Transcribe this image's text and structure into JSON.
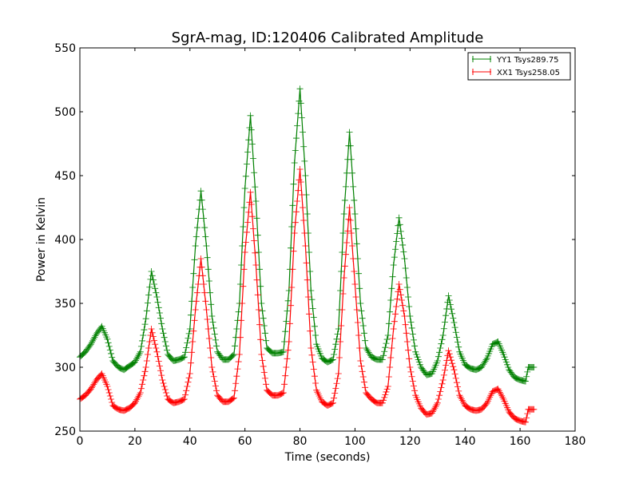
{
  "chart_data": {
    "type": "line",
    "title": "SgrA-mag, ID:120406 Calibrated Amplitude",
    "xlabel": "Time (seconds)",
    "ylabel": "Power in Kelvin",
    "xlim": [
      0,
      180
    ],
    "ylim": [
      250,
      550
    ],
    "xticks": [
      0,
      20,
      40,
      60,
      80,
      100,
      120,
      140,
      160,
      180
    ],
    "yticks": [
      250,
      300,
      350,
      400,
      450,
      500,
      550
    ],
    "grid": false,
    "legend_position": "top-right",
    "marker": "+",
    "series": [
      {
        "name": "YY1 Tsys289.75",
        "color": "#008000",
        "keypoints": [
          [
            0,
            308
          ],
          [
            2,
            312
          ],
          [
            4,
            318
          ],
          [
            6,
            326
          ],
          [
            8,
            332
          ],
          [
            10,
            322
          ],
          [
            12,
            305
          ],
          [
            14,
            300
          ],
          [
            16,
            298
          ],
          [
            18,
            301
          ],
          [
            20,
            304
          ],
          [
            22,
            312
          ],
          [
            24,
            338
          ],
          [
            26,
            375
          ],
          [
            28,
            355
          ],
          [
            30,
            330
          ],
          [
            32,
            310
          ],
          [
            34,
            305
          ],
          [
            36,
            306
          ],
          [
            38,
            308
          ],
          [
            40,
            330
          ],
          [
            42,
            395
          ],
          [
            44,
            438
          ],
          [
            46,
            395
          ],
          [
            48,
            340
          ],
          [
            50,
            312
          ],
          [
            52,
            306
          ],
          [
            54,
            306
          ],
          [
            56,
            310
          ],
          [
            58,
            350
          ],
          [
            60,
            440
          ],
          [
            62,
            497
          ],
          [
            64,
            430
          ],
          [
            66,
            350
          ],
          [
            68,
            315
          ],
          [
            70,
            311
          ],
          [
            72,
            311
          ],
          [
            74,
            312
          ],
          [
            76,
            360
          ],
          [
            78,
            460
          ],
          [
            80,
            518
          ],
          [
            82,
            450
          ],
          [
            84,
            360
          ],
          [
            86,
            318
          ],
          [
            88,
            307
          ],
          [
            90,
            304
          ],
          [
            92,
            306
          ],
          [
            94,
            330
          ],
          [
            96,
            420
          ],
          [
            98,
            484
          ],
          [
            100,
            420
          ],
          [
            102,
            350
          ],
          [
            104,
            315
          ],
          [
            106,
            308
          ],
          [
            108,
            306
          ],
          [
            110,
            306
          ],
          [
            112,
            325
          ],
          [
            114,
            380
          ],
          [
            116,
            417
          ],
          [
            118,
            385
          ],
          [
            120,
            340
          ],
          [
            122,
            312
          ],
          [
            124,
            300
          ],
          [
            126,
            294
          ],
          [
            128,
            295
          ],
          [
            130,
            305
          ],
          [
            132,
            325
          ],
          [
            134,
            356
          ],
          [
            136,
            335
          ],
          [
            138,
            312
          ],
          [
            140,
            302
          ],
          [
            142,
            299
          ],
          [
            144,
            298
          ],
          [
            146,
            300
          ],
          [
            148,
            307
          ],
          [
            150,
            318
          ],
          [
            152,
            320
          ],
          [
            154,
            310
          ],
          [
            156,
            298
          ],
          [
            158,
            292
          ],
          [
            160,
            290
          ],
          [
            162,
            289
          ],
          [
            163,
            300
          ],
          [
            164,
            300
          ],
          [
            165,
            300
          ]
        ]
      },
      {
        "name": "XX1 Tsys258.05",
        "color": "#ff0000",
        "keypoints": [
          [
            0,
            275
          ],
          [
            2,
            278
          ],
          [
            4,
            283
          ],
          [
            6,
            290
          ],
          [
            8,
            295
          ],
          [
            10,
            285
          ],
          [
            12,
            270
          ],
          [
            14,
            267
          ],
          [
            16,
            266
          ],
          [
            18,
            268
          ],
          [
            20,
            272
          ],
          [
            22,
            280
          ],
          [
            24,
            300
          ],
          [
            26,
            330
          ],
          [
            28,
            312
          ],
          [
            30,
            290
          ],
          [
            32,
            275
          ],
          [
            34,
            272
          ],
          [
            36,
            273
          ],
          [
            38,
            275
          ],
          [
            40,
            295
          ],
          [
            42,
            345
          ],
          [
            44,
            385
          ],
          [
            46,
            345
          ],
          [
            48,
            300
          ],
          [
            50,
            278
          ],
          [
            52,
            273
          ],
          [
            54,
            273
          ],
          [
            56,
            276
          ],
          [
            58,
            310
          ],
          [
            60,
            390
          ],
          [
            62,
            437
          ],
          [
            64,
            380
          ],
          [
            66,
            310
          ],
          [
            68,
            282
          ],
          [
            70,
            278
          ],
          [
            72,
            278
          ],
          [
            74,
            280
          ],
          [
            76,
            320
          ],
          [
            78,
            405
          ],
          [
            80,
            455
          ],
          [
            82,
            395
          ],
          [
            84,
            315
          ],
          [
            86,
            282
          ],
          [
            88,
            273
          ],
          [
            90,
            270
          ],
          [
            92,
            272
          ],
          [
            94,
            295
          ],
          [
            96,
            370
          ],
          [
            98,
            425
          ],
          [
            100,
            365
          ],
          [
            102,
            305
          ],
          [
            104,
            280
          ],
          [
            106,
            275
          ],
          [
            108,
            272
          ],
          [
            110,
            272
          ],
          [
            112,
            285
          ],
          [
            114,
            330
          ],
          [
            116,
            365
          ],
          [
            118,
            340
          ],
          [
            120,
            300
          ],
          [
            122,
            278
          ],
          [
            124,
            268
          ],
          [
            126,
            263
          ],
          [
            128,
            264
          ],
          [
            130,
            272
          ],
          [
            132,
            290
          ],
          [
            134,
            313
          ],
          [
            136,
            298
          ],
          [
            138,
            278
          ],
          [
            140,
            270
          ],
          [
            142,
            267
          ],
          [
            144,
            266
          ],
          [
            146,
            267
          ],
          [
            148,
            272
          ],
          [
            150,
            281
          ],
          [
            152,
            283
          ],
          [
            154,
            275
          ],
          [
            156,
            265
          ],
          [
            158,
            260
          ],
          [
            160,
            258
          ],
          [
            162,
            257
          ],
          [
            163,
            267
          ],
          [
            164,
            267
          ],
          [
            165,
            267
          ]
        ]
      }
    ]
  }
}
